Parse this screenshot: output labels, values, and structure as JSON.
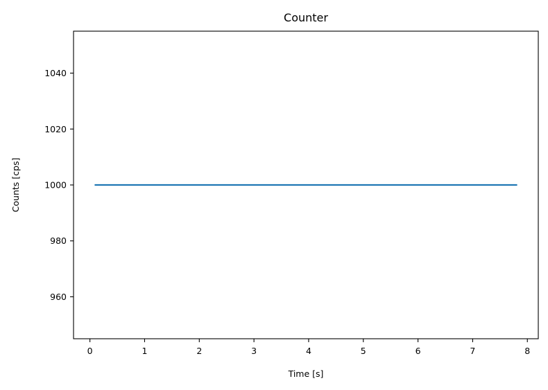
{
  "chart_data": {
    "type": "line",
    "title": "Counter",
    "xlabel": "Time [s]",
    "ylabel": "Counts [cps]",
    "xlim": [
      -0.3,
      8.2
    ],
    "ylim": [
      945,
      1055
    ],
    "xticks": [
      0,
      1,
      2,
      3,
      4,
      5,
      6,
      7,
      8
    ],
    "yticks": [
      960,
      980,
      1000,
      1020,
      1040
    ],
    "grid": false,
    "series": [
      {
        "color": "#1f77b4",
        "x": [
          0.1,
          7.8
        ],
        "y": [
          1000,
          1000
        ]
      }
    ]
  }
}
